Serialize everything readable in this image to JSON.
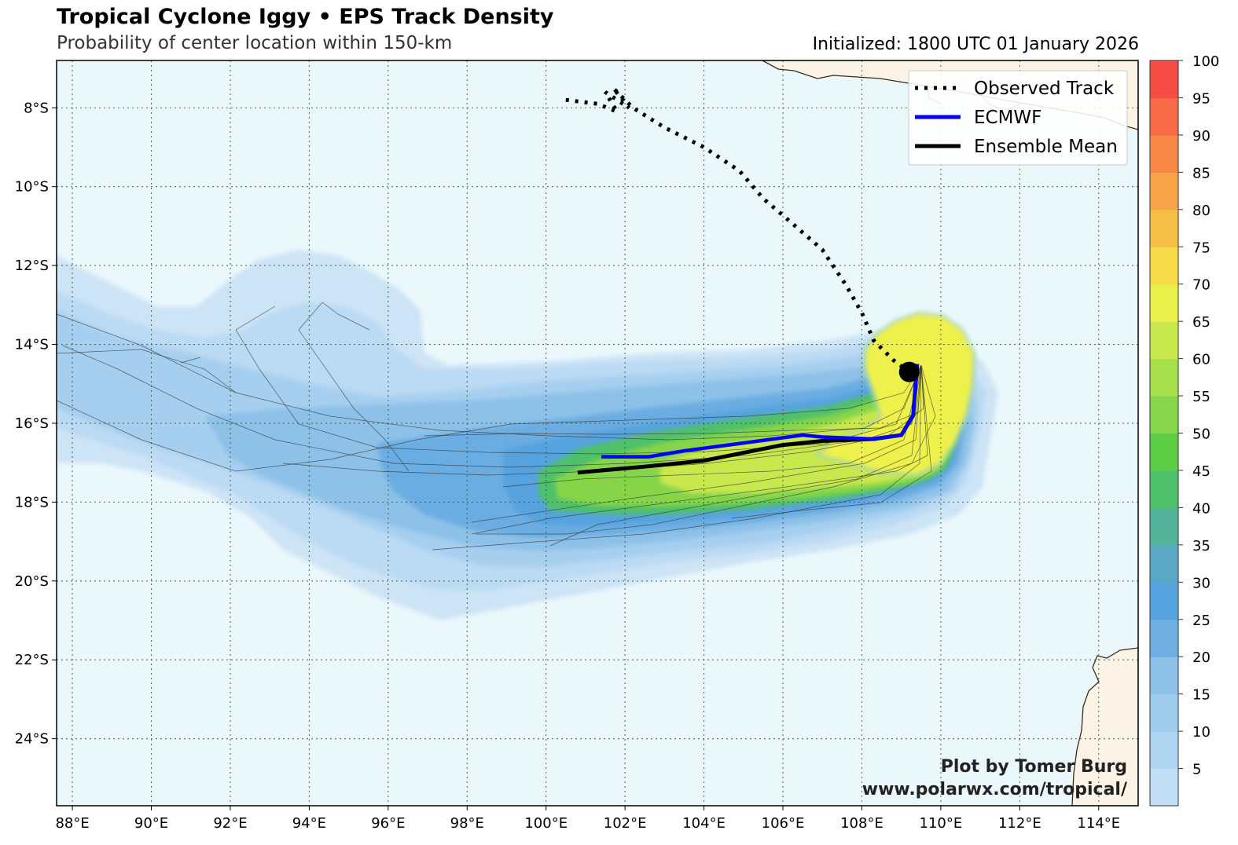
{
  "title": "Tropical Cyclone Iggy • EPS Track Density",
  "subtitle": "Probability of center location within 150-km",
  "initialized": "Initialized: 1800 UTC 01 January 2026",
  "credit": {
    "line1": "Plot by Tomer Burg",
    "line2": "www.polarwx.com/tropical/"
  },
  "legend": [
    {
      "label": "Observed Track",
      "style": "dotted",
      "color": "#000000"
    },
    {
      "label": "ECMWF",
      "style": "solid",
      "color": "#0000ff"
    },
    {
      "label": "Ensemble Mean",
      "style": "solid",
      "color": "#000000"
    }
  ],
  "chart_data": {
    "type": "map",
    "lon_range": [
      87.6,
      115.0
    ],
    "lat_range": [
      -25.7,
      -6.8
    ],
    "lon_ticks": [
      "88°E",
      "90°E",
      "92°E",
      "94°E",
      "96°E",
      "98°E",
      "100°E",
      "102°E",
      "104°E",
      "106°E",
      "108°E",
      "110°E",
      "112°E",
      "114°E"
    ],
    "lat_ticks": [
      "8°S",
      "10°S",
      "12°S",
      "14°S",
      "16°S",
      "18°S",
      "20°S",
      "22°S",
      "24°S"
    ],
    "colorbar": {
      "ticks": [
        "5",
        "10",
        "15",
        "20",
        "25",
        "30",
        "35",
        "40",
        "45",
        "50",
        "55",
        "60",
        "65",
        "70",
        "75",
        "80",
        "85",
        "90",
        "95",
        "100"
      ],
      "colors": [
        "#d4e8f7",
        "#c2def4",
        "#b0d5f0",
        "#9fcbec",
        "#8dc1e8",
        "#6fafe2",
        "#56a3df",
        "#5aa8c3",
        "#52b39a",
        "#4fc06a",
        "#5ccd45",
        "#86d54a",
        "#a7df4c",
        "#c9e84e",
        "#eaf04a",
        "#f5dc48",
        "#f5bf45",
        "#f6a447",
        "#f78847",
        "#f86a47",
        "#f64d47"
      ]
    },
    "density_levels": [
      {
        "percent": 5,
        "color": "#cde4f6"
      },
      {
        "percent": 10,
        "color": "#bbdaf3"
      },
      {
        "percent": 15,
        "color": "#a6cfef"
      },
      {
        "percent": 20,
        "color": "#8dc1e8"
      },
      {
        "percent": 25,
        "color": "#6bade2"
      },
      {
        "percent": 30,
        "color": "#56a3df"
      },
      {
        "percent": 35,
        "color": "#4fc06a"
      },
      {
        "percent": 45,
        "color": "#86d54a"
      },
      {
        "percent": 55,
        "color": "#c9e84e"
      },
      {
        "percent": 60,
        "color": "#eef04c"
      }
    ],
    "observed_track": [
      [
        100.5,
        -7.8
      ],
      [
        101.3,
        -7.9
      ],
      [
        101.8,
        -8.1
      ],
      [
        101.5,
        -7.6
      ],
      [
        102.1,
        -8.0
      ],
      [
        101.7,
        -7.5
      ],
      [
        102.2,
        -8.0
      ],
      [
        103.0,
        -8.5
      ],
      [
        104.0,
        -9.0
      ],
      [
        104.9,
        -9.6
      ],
      [
        105.5,
        -10.3
      ],
      [
        106.2,
        -10.9
      ],
      [
        107.0,
        -11.6
      ],
      [
        107.6,
        -12.5
      ],
      [
        108.0,
        -13.2
      ],
      [
        108.3,
        -13.9
      ],
      [
        108.8,
        -14.4
      ],
      [
        109.2,
        -14.7
      ]
    ],
    "ecmwf_track": [
      [
        109.4,
        -14.5
      ],
      [
        109.3,
        -15.8
      ],
      [
        109.0,
        -16.3
      ],
      [
        108.3,
        -16.4
      ],
      [
        107.0,
        -16.35
      ],
      [
        106.5,
        -16.3
      ],
      [
        105.0,
        -16.5
      ],
      [
        103.5,
        -16.7
      ],
      [
        102.6,
        -16.85
      ],
      [
        101.4,
        -16.85
      ]
    ],
    "ensemble_mean_track": [
      [
        109.4,
        -14.5
      ],
      [
        109.3,
        -15.8
      ],
      [
        109.0,
        -16.3
      ],
      [
        108.3,
        -16.4
      ],
      [
        107.0,
        -16.45
      ],
      [
        106.0,
        -16.55
      ],
      [
        105.0,
        -16.75
      ],
      [
        104.0,
        -16.95
      ],
      [
        102.5,
        -17.1
      ],
      [
        100.8,
        -17.25
      ]
    ],
    "current_position": [
      109.2,
      -14.7
    ]
  }
}
